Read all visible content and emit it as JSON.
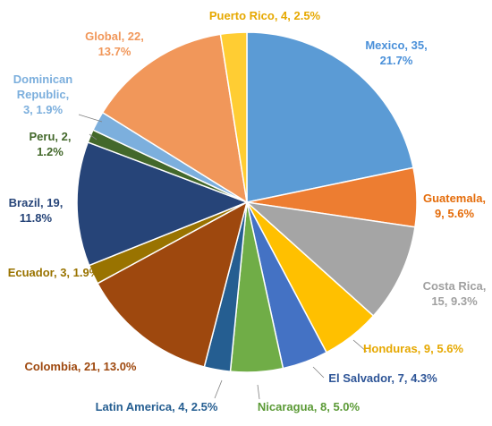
{
  "chart_data": {
    "type": "pie",
    "title": "",
    "start_angle_deg": 0,
    "direction": "clockwise",
    "slices": [
      {
        "name": "Mexico",
        "value": 35,
        "percent": "21.7%",
        "color": "#5B9BD5",
        "label_lines": [
          "Mexico, 35,",
          "21.7%"
        ]
      },
      {
        "name": "Guatemala",
        "value": 9,
        "percent": "5.6%",
        "color": "#ED7D31",
        "label_lines": [
          "Guatemala,",
          "9, 5.6%"
        ]
      },
      {
        "name": "Costa Rica",
        "value": 15,
        "percent": "9.3%",
        "color": "#A5A5A5",
        "label_lines": [
          "Costa Rica,",
          "15, 9.3%"
        ]
      },
      {
        "name": "Honduras",
        "value": 9,
        "percent": "5.6%",
        "color": "#FFC000",
        "label_lines": [
          "Honduras, 9, 5.6%"
        ]
      },
      {
        "name": "El Salvador",
        "value": 7,
        "percent": "4.3%",
        "color": "#4472C4",
        "label_lines": [
          "El Salvador, 7, 4.3%"
        ]
      },
      {
        "name": "Nicaragua",
        "value": 8,
        "percent": "5.0%",
        "color": "#70AD47",
        "label_lines": [
          "Nicaragua, 8, 5.0%"
        ]
      },
      {
        "name": "Latin America",
        "value": 4,
        "percent": "2.5%",
        "color": "#255E91",
        "label_lines": [
          "Latin America, 4, 2.5%"
        ]
      },
      {
        "name": "Colombia",
        "value": 21,
        "percent": "13.0%",
        "color": "#9E480E",
        "label_lines": [
          "Colombia, 21, 13.0%"
        ]
      },
      {
        "name": "Ecuador",
        "value": 3,
        "percent": "1.9%",
        "color": "#997300",
        "label_lines": [
          "Ecuador, 3, 1.9%"
        ]
      },
      {
        "name": "Brazil",
        "value": 19,
        "percent": "11.8%",
        "color": "#264478",
        "label_lines": [
          "Brazil, 19,",
          "11.8%"
        ]
      },
      {
        "name": "Peru",
        "value": 2,
        "percent": "1.2%",
        "color": "#43682B",
        "label_lines": [
          "Peru, 2,",
          "1.2%"
        ]
      },
      {
        "name": "Dominican Republic",
        "value": 3,
        "percent": "1.9%",
        "color": "#7CAFDD",
        "label_lines": [
          "Dominican",
          "Republic,",
          "3, 1.9%"
        ]
      },
      {
        "name": "Global",
        "value": 22,
        "percent": "13.7%",
        "color": "#F1975A",
        "label_lines": [
          "Global, 22,",
          "13.7%"
        ]
      },
      {
        "name": "Puerto Rico",
        "value": 4,
        "percent": "2.5%",
        "color": "#FFCD33",
        "label_lines": [
          "Puerto Rico, 4, 2.5%"
        ]
      }
    ]
  }
}
